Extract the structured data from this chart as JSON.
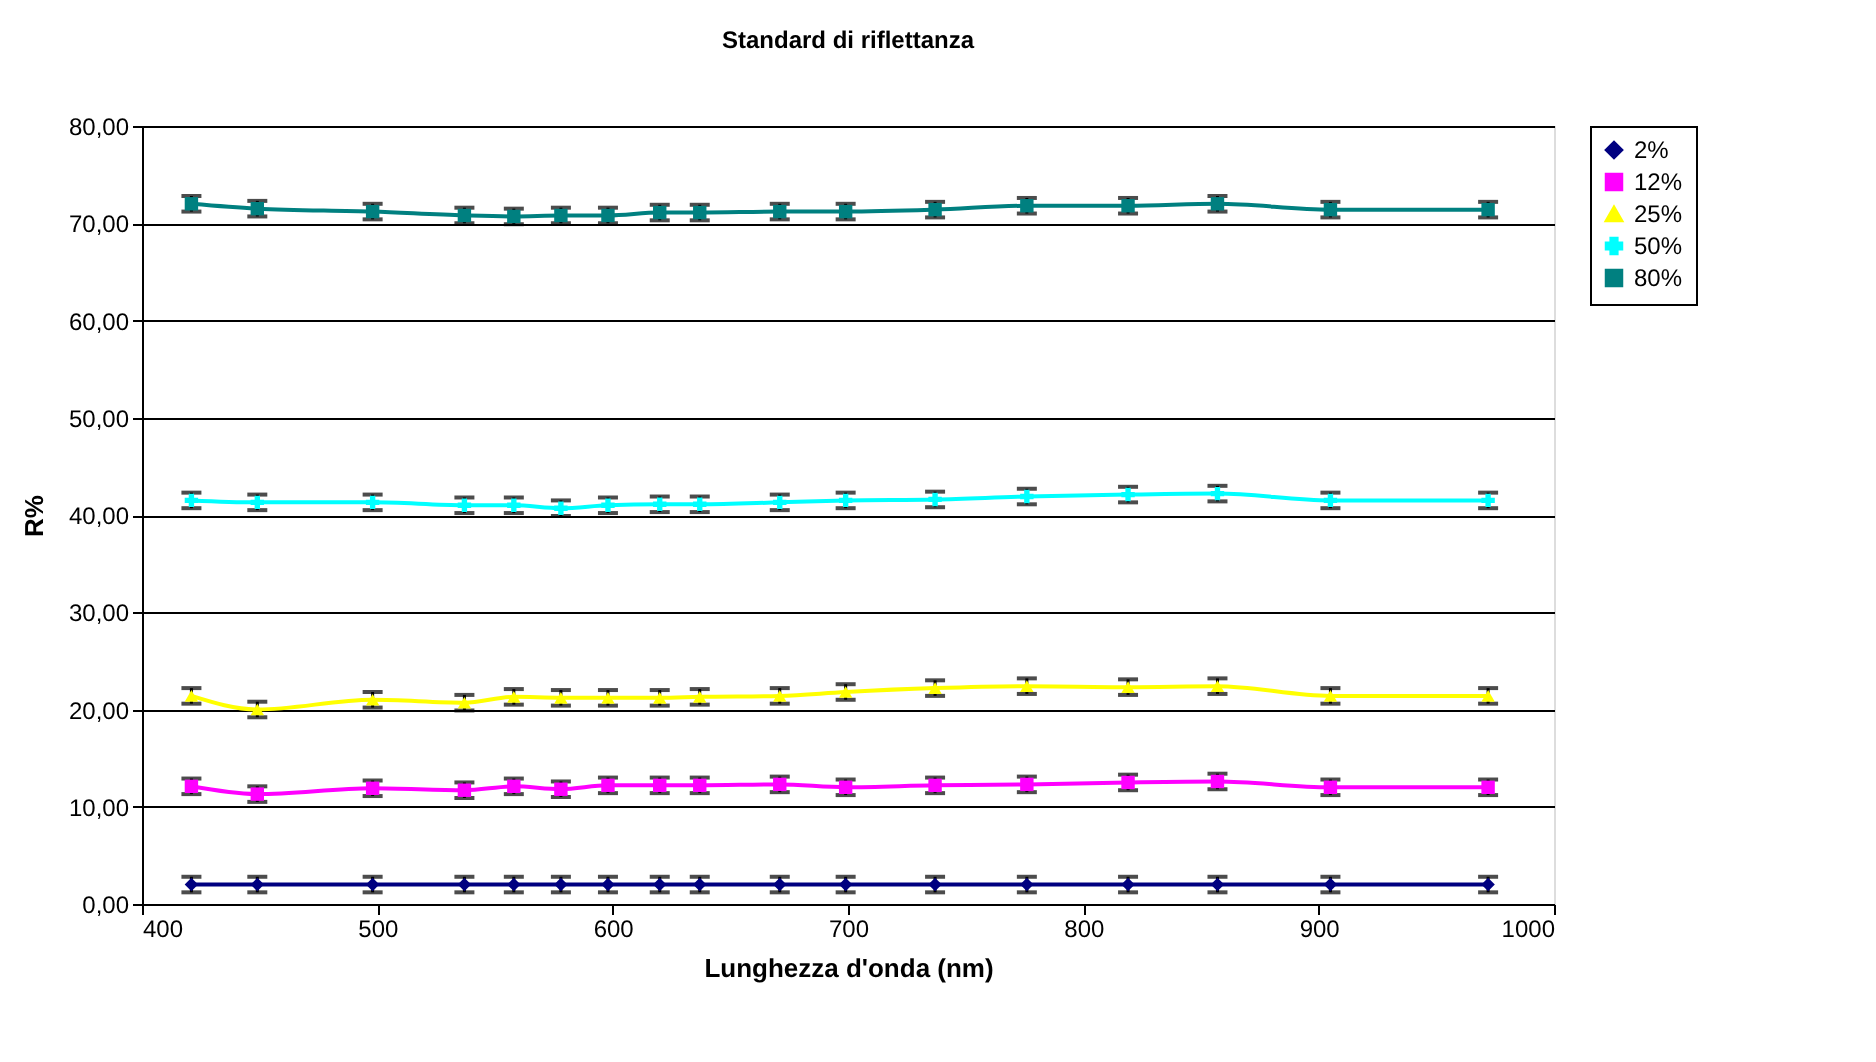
{
  "chart_data": {
    "type": "line",
    "title": "Standard di riflettanza",
    "xlabel": "Lunghezza d'onda (nm)",
    "ylabel": "R%",
    "x": [
      421,
      449,
      498,
      537,
      558,
      578,
      598,
      620,
      637,
      671,
      699,
      737,
      776,
      819,
      857,
      905,
      972
    ],
    "xlim": [
      400,
      1000
    ],
    "xticks": [
      400,
      500,
      600,
      700,
      800,
      900,
      1000
    ],
    "ylim": [
      0,
      80
    ],
    "yticks": [
      {
        "value": 0,
        "label": "0,00"
      },
      {
        "value": 10,
        "label": "10,00"
      },
      {
        "value": 20,
        "label": "20,00"
      },
      {
        "value": 30,
        "label": "30,00"
      },
      {
        "value": 40,
        "label": "40,00"
      },
      {
        "value": 50,
        "label": "50,00"
      },
      {
        "value": 60,
        "label": "60,00"
      },
      {
        "value": 70,
        "label": "70,00"
      },
      {
        "value": 80,
        "label": "80,00"
      }
    ],
    "grid": "y",
    "legend": "right",
    "series": [
      {
        "name": "2%",
        "color": "#000080",
        "marker": "diamond",
        "values": [
          2.0,
          2.0,
          2.0,
          2.0,
          2.0,
          2.0,
          2.0,
          2.0,
          2.0,
          2.0,
          2.0,
          2.0,
          2.0,
          2.0,
          2.0,
          2.0,
          2.0
        ],
        "errors": [
          0.8,
          0.8,
          0.8,
          0.8,
          0.8,
          0.8,
          0.8,
          0.8,
          0.8,
          0.8,
          0.8,
          0.8,
          0.8,
          0.8,
          0.8,
          0.8,
          0.8
        ]
      },
      {
        "name": "12%",
        "color": "#ff00ff",
        "marker": "square",
        "values": [
          12.1,
          11.3,
          11.9,
          11.7,
          12.1,
          11.8,
          12.2,
          12.2,
          12.2,
          12.3,
          12.0,
          12.2,
          12.3,
          12.5,
          12.6,
          12.0,
          12.0
        ],
        "errors": [
          0.8,
          0.8,
          0.8,
          0.8,
          0.8,
          0.8,
          0.8,
          0.8,
          0.8,
          0.8,
          0.8,
          0.8,
          0.8,
          0.8,
          0.8,
          0.8,
          0.8
        ]
      },
      {
        "name": "25%",
        "color": "#ffff00",
        "marker": "triangle",
        "values": [
          21.4,
          20.0,
          21.0,
          20.7,
          21.3,
          21.2,
          21.2,
          21.2,
          21.3,
          21.4,
          21.8,
          22.2,
          22.4,
          22.3,
          22.4,
          21.4,
          21.4
        ],
        "errors": [
          0.8,
          0.8,
          0.8,
          0.8,
          0.8,
          0.8,
          0.8,
          0.8,
          0.8,
          0.8,
          0.8,
          0.8,
          0.8,
          0.8,
          0.8,
          0.8,
          0.8
        ]
      },
      {
        "name": "50%",
        "color": "#00ffff",
        "marker": "cross",
        "values": [
          41.5,
          41.3,
          41.3,
          41.0,
          41.0,
          40.7,
          41.0,
          41.1,
          41.1,
          41.3,
          41.5,
          41.6,
          41.9,
          42.1,
          42.2,
          41.5,
          41.5
        ],
        "errors": [
          0.8,
          0.8,
          0.8,
          0.8,
          0.8,
          0.8,
          0.8,
          0.8,
          0.8,
          0.8,
          0.8,
          0.8,
          0.8,
          0.8,
          0.8,
          0.8,
          0.8
        ]
      },
      {
        "name": "80%",
        "color": "#008080",
        "marker": "square",
        "values": [
          72.0,
          71.5,
          71.2,
          70.8,
          70.7,
          70.8,
          70.8,
          71.1,
          71.1,
          71.2,
          71.2,
          71.4,
          71.8,
          71.8,
          72.0,
          71.4,
          71.4
        ],
        "errors": [
          0.8,
          0.8,
          0.8,
          0.8,
          0.8,
          0.8,
          0.8,
          0.8,
          0.8,
          0.8,
          0.8,
          0.8,
          0.8,
          0.8,
          0.8,
          0.8,
          0.8
        ]
      }
    ]
  }
}
